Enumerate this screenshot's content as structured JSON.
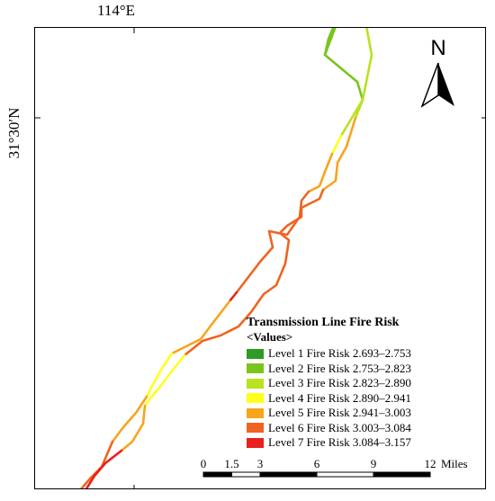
{
  "graticule": {
    "longitude_label": "114°E",
    "latitude_label": "31°30′N"
  },
  "north_arrow": {
    "letter": "N",
    "icon": "north-arrow-icon"
  },
  "legend": {
    "title": "Transmission Line Fire Risk",
    "subtitle": "<Values>",
    "classes": [
      {
        "label": "Level 1 Fire Risk 2.693–2.753",
        "color": "#2e9b22"
      },
      {
        "label": "Level 2 Fire Risk 2.753–2.823",
        "color": "#79c51c"
      },
      {
        "label": "Level 3 Fire Risk 2.823–2.890",
        "color": "#b9e21f"
      },
      {
        "label": "Level 4 Fire Risk 2.890–2.941",
        "color": "#ffff1c"
      },
      {
        "label": "Level 5 Fire Risk 2.941–3.003",
        "color": "#f8a41c"
      },
      {
        "label": "Level 6 Fire Risk 3.003–3.084",
        "color": "#ef6420"
      },
      {
        "label": "Level 7 Fire Risk 3.084–3.157",
        "color": "#e8201e"
      }
    ]
  },
  "scale_bar": {
    "ticks": [
      "0",
      "1.5",
      "3",
      "6",
      "9",
      "12"
    ],
    "tick_values": [
      0,
      1.5,
      3,
      6,
      9,
      12
    ],
    "unit": "Miles"
  }
}
